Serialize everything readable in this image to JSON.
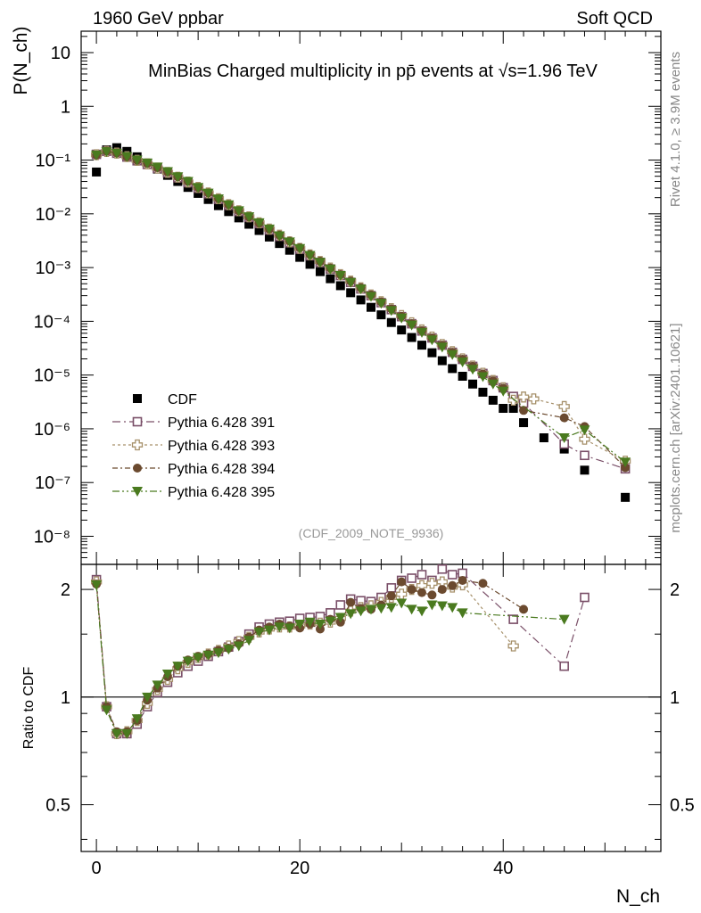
{
  "header": {
    "left": "1960 GeV ppbar",
    "right": "Soft QCD"
  },
  "side_text": {
    "rivet": "Rivet 4.1.0, ≥ 3.9M events",
    "mcplots": "mcplots.cern.ch [arXiv:2401.10621]"
  },
  "chart_data": [
    {
      "type": "scatter",
      "title": "MinBias Charged multiplicity in pp̄ events at √s=1.96 TeV",
      "annotation": "(CDF_2009_NOTE_9936)",
      "xlabel": "N_ch",
      "ylabel": "P(N_ch)",
      "yscale": "log",
      "xlim": [
        -1.5,
        55.5
      ],
      "ylim": [
        3e-09,
        25
      ],
      "y_tick_labels": [
        "10⁻⁸",
        "10⁻⁷",
        "10⁻⁶",
        "10⁻⁵",
        "10⁻⁴",
        "10⁻³",
        "10⁻²",
        "10⁻¹",
        "1",
        "10"
      ],
      "legend": [
        "CDF",
        "Pythia 6.428 391",
        "Pythia 6.428 393",
        "Pythia 6.428 394",
        "Pythia 6.428 395"
      ],
      "legend_position": "lower-left",
      "series": [
        {
          "name": "CDF",
          "color": "#000000",
          "marker": "filled-square",
          "x": [
            0,
            1,
            2,
            3,
            4,
            5,
            6,
            7,
            8,
            9,
            10,
            11,
            12,
            13,
            14,
            15,
            16,
            17,
            18,
            19,
            20,
            21,
            22,
            23,
            24,
            25,
            26,
            27,
            28,
            29,
            30,
            31,
            32,
            33,
            34,
            35,
            36,
            37,
            38,
            39,
            40,
            41,
            42,
            44,
            46,
            48,
            52
          ],
          "y": [
            0.06,
            0.155,
            0.17,
            0.145,
            0.115,
            0.088,
            0.068,
            0.052,
            0.04,
            0.031,
            0.024,
            0.0185,
            0.0142,
            0.011,
            0.0084,
            0.0064,
            0.0049,
            0.0037,
            0.0028,
            0.0021,
            0.00155,
            0.00115,
            0.00084,
            0.00062,
            0.00046,
            0.00034,
            0.00025,
            0.000182,
            0.000132,
            9.5e-05,
            6.9e-05,
            5e-05,
            3.6e-05,
            2.6e-05,
            1.85e-05,
            1.32e-05,
            9.5e-06,
            6.8e-06,
            4.8e-06,
            3.4e-06,
            2.4e-06,
            2.4e-06,
            1.3e-06,
            6.8e-07,
            4.2e-07,
            1.7e-07,
            5.3e-08
          ]
        },
        {
          "name": "Pythia 6.428 391",
          "color": "#7a4f68",
          "marker": "open-square",
          "x": [
            0,
            1,
            2,
            3,
            4,
            5,
            6,
            7,
            8,
            9,
            10,
            11,
            12,
            13,
            14,
            15,
            16,
            17,
            18,
            19,
            20,
            21,
            22,
            23,
            24,
            25,
            26,
            27,
            28,
            29,
            30,
            31,
            32,
            33,
            34,
            35,
            36,
            37,
            38,
            39,
            40,
            41,
            42,
            46,
            48,
            52
          ],
          "y": [
            0.128,
            0.146,
            0.134,
            0.114,
            0.097,
            0.083,
            0.07,
            0.058,
            0.047,
            0.038,
            0.03,
            0.0237,
            0.0186,
            0.0144,
            0.0111,
            0.0086,
            0.0066,
            0.005,
            0.0038,
            0.0029,
            0.00219,
            0.00166,
            0.00125,
            0.00094,
            0.00071,
            0.00053,
            0.0004,
            0.0003,
            0.000222,
            0.000165,
            0.000122,
            9e-05,
            6.6e-05,
            4.9e-05,
            3.6e-05,
            2.65e-05,
            1.96e-05,
            1.45e-05,
            1.07e-05,
            7.9e-06,
            5.8e-06,
            4e-06,
            3e-06,
            5.2e-07,
            3.2e-07,
            1.8e-07
          ]
        },
        {
          "name": "Pythia 6.428 393",
          "color": "#a6906a",
          "marker": "open-plus",
          "x": [
            0,
            1,
            2,
            3,
            4,
            5,
            6,
            7,
            8,
            9,
            10,
            11,
            12,
            13,
            14,
            15,
            16,
            17,
            18,
            19,
            20,
            21,
            22,
            23,
            24,
            25,
            26,
            27,
            28,
            29,
            30,
            31,
            32,
            33,
            34,
            35,
            36,
            37,
            38,
            39,
            40,
            41,
            42,
            43,
            46,
            48,
            52
          ],
          "y": [
            0.126,
            0.145,
            0.135,
            0.116,
            0.099,
            0.085,
            0.071,
            0.059,
            0.048,
            0.039,
            0.031,
            0.0245,
            0.0191,
            0.0148,
            0.0114,
            0.0088,
            0.0068,
            0.0052,
            0.004,
            0.003,
            0.00227,
            0.00172,
            0.0013,
            0.00098,
            0.00074,
            0.00056,
            0.00042,
            0.00031,
            0.000232,
            0.000172,
            0.000128,
            9.4e-05,
            6.9e-05,
            5.1e-05,
            3.7e-05,
            2.72e-05,
            2e-05,
            1.47e-05,
            1.08e-05,
            7.9e-06,
            5.8e-06,
            3.4e-06,
            3.9e-06,
            3.6e-06,
            2.6e-06,
            6.4e-07,
            2.5e-07
          ]
        },
        {
          "name": "Pythia 6.428 394",
          "color": "#6b4a2f",
          "marker": "filled-circle",
          "x": [
            0,
            1,
            2,
            3,
            4,
            5,
            6,
            7,
            8,
            9,
            10,
            11,
            12,
            13,
            14,
            15,
            16,
            17,
            18,
            19,
            20,
            21,
            22,
            23,
            24,
            25,
            26,
            27,
            28,
            29,
            30,
            31,
            32,
            33,
            34,
            35,
            36,
            37,
            38,
            39,
            40,
            42,
            46,
            48,
            52
          ],
          "y": [
            0.125,
            0.147,
            0.136,
            0.115,
            0.099,
            0.087,
            0.072,
            0.06,
            0.049,
            0.04,
            0.031,
            0.0245,
            0.0191,
            0.0148,
            0.0114,
            0.0088,
            0.0067,
            0.0052,
            0.004,
            0.0031,
            0.00234,
            0.00175,
            0.00131,
            0.00098,
            0.00074,
            0.00056,
            0.00042,
            0.00031,
            0.00023,
            0.00017,
            0.000124,
            9.1e-05,
            6.7e-05,
            4.9e-05,
            3.6e-05,
            2.65e-05,
            1.96e-05,
            1.45e-05,
            1.05e-05,
            7.8e-06,
            5.7e-06,
            2.2e-06,
            1.6e-06,
            1.1e-06,
            1.9e-07
          ]
        },
        {
          "name": "Pythia 6.428 395",
          "color": "#4a7a1f",
          "marker": "filled-triangle-down",
          "x": [
            0,
            1,
            2,
            3,
            4,
            5,
            6,
            7,
            8,
            9,
            10,
            11,
            12,
            13,
            14,
            15,
            16,
            17,
            18,
            19,
            20,
            21,
            22,
            23,
            24,
            25,
            26,
            27,
            28,
            29,
            30,
            31,
            32,
            33,
            34,
            35,
            36,
            37,
            38,
            39,
            40,
            46,
            48,
            52
          ],
          "y": [
            0.124,
            0.143,
            0.134,
            0.116,
            0.1,
            0.088,
            0.074,
            0.061,
            0.049,
            0.04,
            0.031,
            0.0242,
            0.0189,
            0.0147,
            0.0114,
            0.0088,
            0.0068,
            0.0052,
            0.0039,
            0.003,
            0.00226,
            0.00168,
            0.00125,
            0.00094,
            0.00071,
            0.00053,
            0.0004,
            0.00029,
            0.000216,
            0.000158,
            0.000115,
            8.5e-05,
            6.2e-05,
            4.5e-05,
            3.3e-05,
            2.4e-05,
            1.75e-05,
            1.28e-05,
            9.3e-06,
            6.8e-06,
            5e-06,
            6.8e-07,
            9.5e-07,
            2.4e-07
          ]
        }
      ]
    },
    {
      "type": "scatter",
      "title": "",
      "xlabel": "N_ch",
      "ylabel": "Ratio to CDF",
      "yscale": "log",
      "xlim": [
        -1.5,
        55.5
      ],
      "ylim": [
        0.37,
        2.35
      ],
      "reference_line": 1,
      "x_tick_labels": [
        "0",
        "20",
        "40"
      ],
      "y_tick_labels": [
        "0.5",
        "1",
        "2"
      ],
      "series": [
        {
          "name": "Pythia 6.428 391",
          "color": "#7a4f68",
          "marker": "open-square",
          "x": [
            0,
            1,
            2,
            3,
            4,
            5,
            6,
            7,
            8,
            9,
            10,
            11,
            12,
            13,
            14,
            15,
            16,
            17,
            18,
            19,
            20,
            21,
            22,
            23,
            24,
            25,
            26,
            27,
            28,
            29,
            30,
            31,
            32,
            33,
            34,
            35,
            36,
            41,
            46,
            48
          ],
          "y": [
            2.13,
            0.94,
            0.79,
            0.79,
            0.84,
            0.94,
            1.03,
            1.1,
            1.17,
            1.22,
            1.26,
            1.3,
            1.34,
            1.38,
            1.43,
            1.5,
            1.57,
            1.6,
            1.62,
            1.63,
            1.66,
            1.67,
            1.68,
            1.72,
            1.81,
            1.88,
            1.86,
            1.85,
            1.9,
            2.02,
            2.12,
            2.15,
            2.2,
            2.12,
            2.28,
            2.2,
            2.22,
            1.65,
            1.22,
            1.9
          ]
        },
        {
          "name": "Pythia 6.428 393",
          "color": "#a6906a",
          "marker": "open-plus",
          "x": [
            0,
            1,
            2,
            3,
            4,
            5,
            6,
            7,
            8,
            9,
            10,
            11,
            12,
            13,
            14,
            15,
            16,
            17,
            18,
            19,
            20,
            21,
            22,
            23,
            24,
            25,
            26,
            27,
            28,
            29,
            30,
            31,
            32,
            33,
            34,
            35,
            36,
            41
          ],
          "y": [
            2.1,
            0.94,
            0.79,
            0.8,
            0.86,
            0.96,
            1.05,
            1.12,
            1.2,
            1.25,
            1.29,
            1.32,
            1.35,
            1.39,
            1.43,
            1.47,
            1.52,
            1.55,
            1.57,
            1.57,
            1.58,
            1.6,
            1.61,
            1.62,
            1.66,
            1.74,
            1.78,
            1.8,
            1.84,
            1.9,
            1.94,
            2.0,
            2.05,
            2.08,
            2.1,
            2.03,
            2.06,
            1.39
          ]
        },
        {
          "name": "Pythia 6.428 394",
          "color": "#6b4a2f",
          "marker": "filled-circle",
          "x": [
            0,
            1,
            2,
            3,
            4,
            5,
            6,
            7,
            8,
            9,
            10,
            11,
            12,
            13,
            14,
            15,
            16,
            17,
            18,
            19,
            20,
            21,
            22,
            23,
            24,
            25,
            26,
            27,
            28,
            29,
            30,
            31,
            32,
            33,
            34,
            35,
            36,
            38,
            42
          ],
          "y": [
            2.07,
            0.94,
            0.8,
            0.8,
            0.86,
            0.98,
            1.06,
            1.14,
            1.22,
            1.27,
            1.3,
            1.32,
            1.35,
            1.37,
            1.41,
            1.47,
            1.54,
            1.57,
            1.6,
            1.58,
            1.56,
            1.6,
            1.55,
            1.65,
            1.62,
            1.84,
            1.77,
            1.76,
            1.81,
            1.92,
            2.1,
            2.0,
            1.96,
            1.93,
            2.0,
            2.05,
            2.12,
            2.08,
            1.76
          ]
        },
        {
          "name": "Pythia 6.428 395",
          "color": "#4a7a1f",
          "marker": "filled-triangle-down",
          "x": [
            0,
            1,
            2,
            3,
            4,
            5,
            6,
            7,
            8,
            9,
            10,
            11,
            12,
            13,
            14,
            15,
            16,
            17,
            18,
            19,
            20,
            21,
            22,
            23,
            24,
            25,
            26,
            27,
            28,
            29,
            30,
            31,
            32,
            33,
            34,
            35,
            36,
            46
          ],
          "y": [
            2.06,
            0.92,
            0.79,
            0.79,
            0.87,
            1.0,
            1.08,
            1.16,
            1.22,
            1.26,
            1.29,
            1.31,
            1.33,
            1.36,
            1.39,
            1.44,
            1.52,
            1.54,
            1.57,
            1.56,
            1.6,
            1.62,
            1.6,
            1.63,
            1.67,
            1.71,
            1.74,
            1.76,
            1.77,
            1.78,
            1.83,
            1.76,
            1.74,
            1.81,
            1.8,
            1.78,
            1.72,
            1.65
          ]
        }
      ]
    }
  ]
}
